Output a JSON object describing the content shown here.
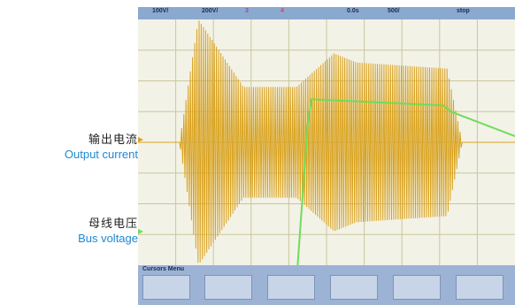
{
  "labels": {
    "output_current_zh": "输出电流",
    "output_current_en": "Output current",
    "bus_voltage_zh": "母线电压",
    "bus_voltage_en": "Bus voltage",
    "en_color": "#1e88d2"
  },
  "status_bar": {
    "ch1": "100V/",
    "ch2": "200V/",
    "ch3": "3",
    "ch4": "4",
    "time_offset": "0.0s",
    "timebase": "500/",
    "mode": "stop"
  },
  "menu": {
    "title": "Cursors Menu",
    "softkeys": [
      "",
      "",
      "",
      "",
      "",
      ""
    ]
  },
  "colors": {
    "current_trace": "#d9a21e",
    "voltage_trace": "#6fdc5c",
    "grid": "#c9c79a"
  },
  "chart_data": {
    "type": "line",
    "title": "",
    "xlabel": "",
    "ylabel": "",
    "grid": true,
    "x_divisions": 10,
    "y_divisions": 8,
    "xlim": [
      0,
      10
    ],
    "series": [
      {
        "name": "Output current",
        "x": [
          0,
          1.1,
          1.6,
          2.8,
          4.2,
          5.2,
          5.8,
          8.2,
          8.6,
          10
        ],
        "y": [
          0,
          0,
          4.0,
          1.8,
          1.8,
          2.9,
          2.6,
          2.4,
          0,
          0
        ]
      },
      {
        "name": "Bus voltage",
        "x": [
          0,
          1.0,
          1.5,
          2.3,
          2.6,
          3.0,
          3.3,
          3.6,
          4.0,
          4.2,
          4.5,
          4.6,
          8.1,
          8.3,
          10
        ],
        "y": [
          -4.5,
          -4.5,
          -4.8,
          -5.4,
          -5.3,
          -4.8,
          -4.7,
          -4.7,
          -4.7,
          -4.6,
          0.6,
          1.4,
          1.2,
          1.0,
          0.2
        ]
      }
    ]
  }
}
